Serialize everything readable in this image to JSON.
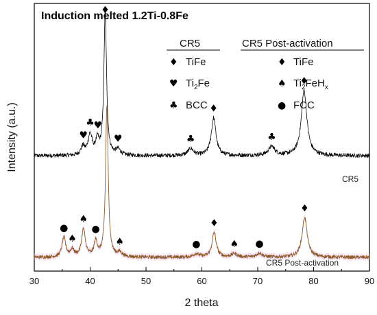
{
  "chart_data": {
    "type": "line",
    "title": "Induction melted 1.2Ti-0.8Fe",
    "xlabel": "2 theta",
    "ylabel": "Intensity (a.u.)",
    "xlim": [
      30,
      90
    ],
    "xticks": [
      "30",
      "40",
      "50",
      "60",
      "70",
      "80",
      "90"
    ],
    "grid": false,
    "legend": {
      "groups": [
        {
          "heading": "CR5",
          "entries": [
            {
              "symbol": "diamond",
              "glyph": "♦",
              "label": "TiFe"
            },
            {
              "symbol": "heart",
              "glyph": "♥",
              "label": "Ti",
              "sub": "2",
              "rest": "Fe"
            },
            {
              "symbol": "club",
              "glyph": "♣",
              "label": "BCC"
            }
          ]
        },
        {
          "heading": "CR5 Post-activation",
          "entries": [
            {
              "symbol": "diamond",
              "glyph": "♦",
              "label": "TiFe"
            },
            {
              "symbol": "spade",
              "glyph": "♠",
              "label": "Ti",
              "sub": "2",
              "rest": "FeH",
              "sub2": "x"
            },
            {
              "symbol": "dot",
              "glyph": "●",
              "label": "FCC"
            }
          ]
        }
      ]
    },
    "series": [
      {
        "name": "CR5",
        "color": "#000000",
        "baseline": 0.55,
        "noise": 0.03,
        "peaks": [
          {
            "x": 38.7,
            "h": 0.12,
            "w": 0.4
          },
          {
            "x": 40.0,
            "h": 0.3,
            "w": 0.45
          },
          {
            "x": 41.3,
            "h": 0.2,
            "w": 0.35
          },
          {
            "x": 42.7,
            "h": 2.1,
            "w": 0.28
          },
          {
            "x": 45.0,
            "h": 0.08,
            "w": 0.5
          },
          {
            "x": 58.0,
            "h": 0.1,
            "w": 0.6
          },
          {
            "x": 62.1,
            "h": 0.55,
            "w": 0.5
          },
          {
            "x": 72.5,
            "h": 0.13,
            "w": 0.7
          },
          {
            "x": 78.3,
            "h": 0.95,
            "w": 0.6
          }
        ]
      },
      {
        "name": "CR5 Post-activation",
        "color": "#8a5a2b",
        "shade_color": "#f2c4d8",
        "baseline": 0.0,
        "noise": 0.025,
        "peaks": [
          {
            "x": 35.3,
            "h": 0.28,
            "w": 0.4
          },
          {
            "x": 36.8,
            "h": 0.1,
            "w": 0.4
          },
          {
            "x": 38.8,
            "h": 0.4,
            "w": 0.4
          },
          {
            "x": 41.0,
            "h": 0.22,
            "w": 0.35
          },
          {
            "x": 43.0,
            "h": 2.2,
            "w": 0.28
          },
          {
            "x": 45.3,
            "h": 0.06,
            "w": 0.5
          },
          {
            "x": 59.0,
            "h": 0.05,
            "w": 0.6
          },
          {
            "x": 62.2,
            "h": 0.36,
            "w": 0.45
          },
          {
            "x": 65.8,
            "h": 0.05,
            "w": 0.6
          },
          {
            "x": 70.3,
            "h": 0.06,
            "w": 0.6
          },
          {
            "x": 78.4,
            "h": 0.58,
            "w": 0.55
          }
        ]
      }
    ],
    "annotations": [
      {
        "series": 0,
        "x": 38.8,
        "glyph": "♥"
      },
      {
        "series": 0,
        "x": 40.0,
        "glyph": "♣"
      },
      {
        "series": 0,
        "x": 41.4,
        "glyph": "♥"
      },
      {
        "series": 0,
        "x": 42.7,
        "glyph": "♦"
      },
      {
        "series": 0,
        "x": 45.0,
        "glyph": "♥"
      },
      {
        "series": 0,
        "x": 58.0,
        "glyph": "♣"
      },
      {
        "series": 0,
        "x": 62.1,
        "glyph": "♦"
      },
      {
        "series": 0,
        "x": 72.5,
        "glyph": "♣"
      },
      {
        "series": 0,
        "x": 78.3,
        "glyph": "♦"
      },
      {
        "series": 1,
        "x": 35.3,
        "glyph": "●"
      },
      {
        "series": 1,
        "x": 36.8,
        "glyph": "♠"
      },
      {
        "series": 1,
        "x": 38.8,
        "glyph": "♠"
      },
      {
        "series": 1,
        "x": 41.0,
        "glyph": "●"
      },
      {
        "series": 1,
        "x": 45.3,
        "glyph": "♠"
      },
      {
        "series": 1,
        "x": 59.0,
        "glyph": "●"
      },
      {
        "series": 1,
        "x": 62.2,
        "glyph": "♦"
      },
      {
        "series": 1,
        "x": 65.8,
        "glyph": "♠"
      },
      {
        "series": 1,
        "x": 70.3,
        "glyph": "●"
      },
      {
        "series": 1,
        "x": 78.4,
        "glyph": "♦"
      }
    ]
  }
}
